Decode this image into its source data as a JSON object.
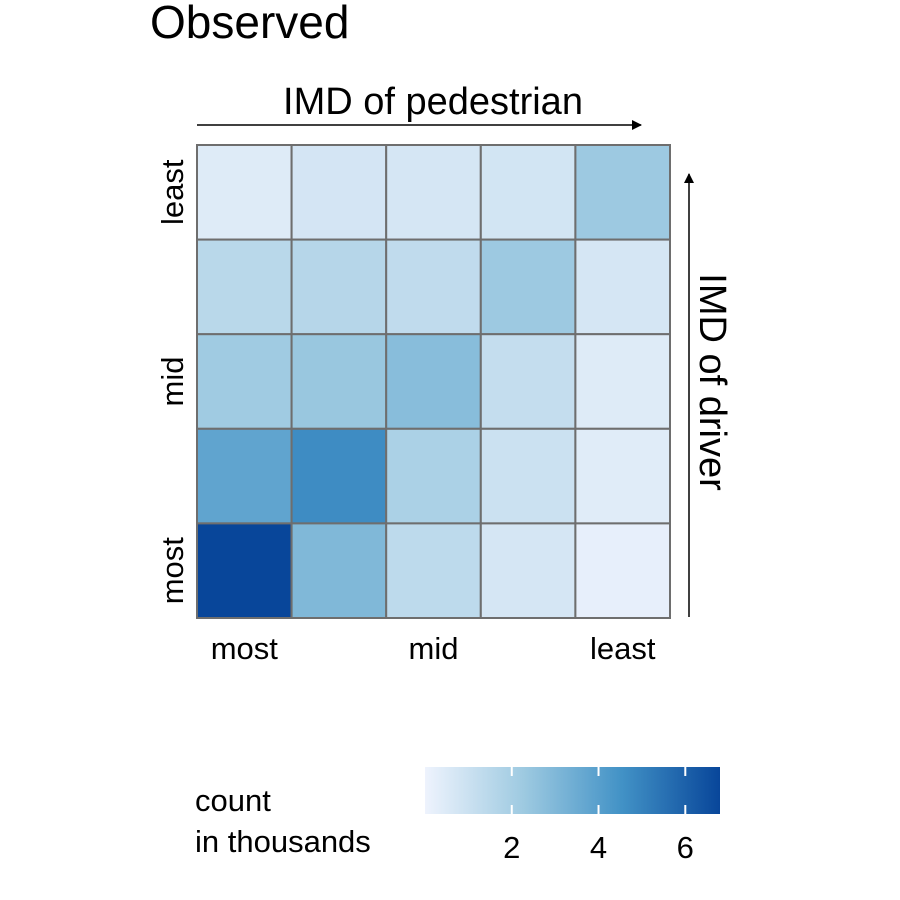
{
  "chart_data": {
    "type": "heatmap",
    "title": "Observed",
    "xlabel": "IMD of pedestrian",
    "ylabel": "IMD of driver",
    "x_categories": [
      "most",
      "",
      "mid",
      "",
      "least"
    ],
    "y_categories_bottom_to_top": [
      "most",
      "",
      "mid",
      "",
      "least"
    ],
    "x_tick_labels": [
      "most",
      "mid",
      "least"
    ],
    "y_tick_labels": [
      "most",
      "mid",
      "least"
    ],
    "values_rows_top_to_bottom": [
      [
        0.45,
        0.75,
        0.7,
        0.8,
        2.3
      ],
      [
        1.5,
        1.6,
        1.3,
        2.3,
        0.7
      ],
      [
        2.2,
        2.4,
        2.8,
        1.2,
        0.45
      ],
      [
        3.8,
        4.7,
        1.9,
        1.0,
        0.4
      ],
      [
        6.8,
        3.0,
        1.4,
        0.7,
        0.2
      ]
    ],
    "value_unit": "count in thousands",
    "colorscale": [
      "#eef3fd",
      "#9ecae1",
      "#4292c6",
      "#08469a"
    ],
    "legend": {
      "title": "count\nin thousands",
      "title_lines": [
        "count",
        "in thousands"
      ],
      "ticks": [
        2,
        4,
        6
      ],
      "range": [
        0,
        6.8
      ],
      "placement": "bottom"
    },
    "grid": true
  }
}
